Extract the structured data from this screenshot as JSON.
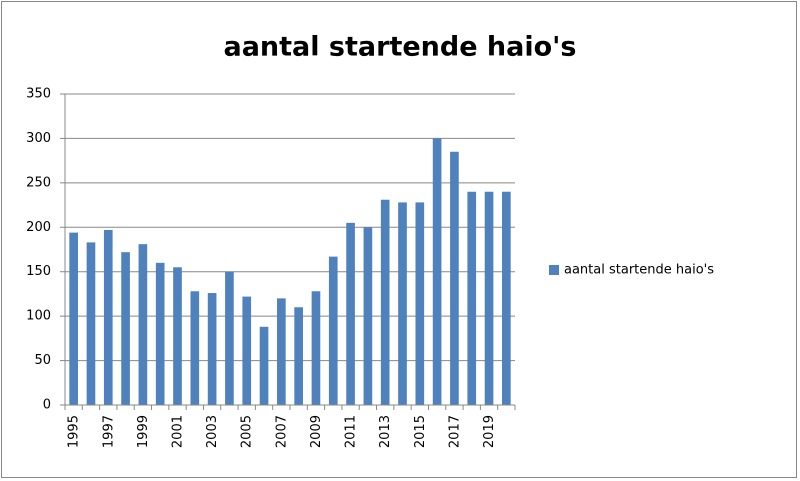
{
  "chart_data": {
    "type": "bar",
    "title": "aantal startende haio's",
    "categories": [
      "1995",
      null,
      "1997",
      null,
      "1999",
      null,
      "2001",
      null,
      "2003",
      null,
      "2005",
      null,
      "2007",
      null,
      "2009",
      null,
      "2011",
      null,
      "2013",
      null,
      "2015",
      null,
      "2017",
      null,
      "2019",
      null
    ],
    "series": [
      {
        "name": "aantal startende haio's",
        "color": "#4f81bd",
        "values": [
          194,
          183,
          197,
          172,
          181,
          160,
          155,
          128,
          126,
          150,
          122,
          88,
          120,
          110,
          128,
          167,
          205,
          200,
          231,
          228,
          228,
          300,
          285,
          240,
          240,
          240
        ]
      }
    ],
    "ylim": [
      0,
      350
    ],
    "yticks": [
      0,
      50,
      100,
      150,
      200,
      250,
      300,
      350
    ],
    "grid": true,
    "legend": "right"
  }
}
